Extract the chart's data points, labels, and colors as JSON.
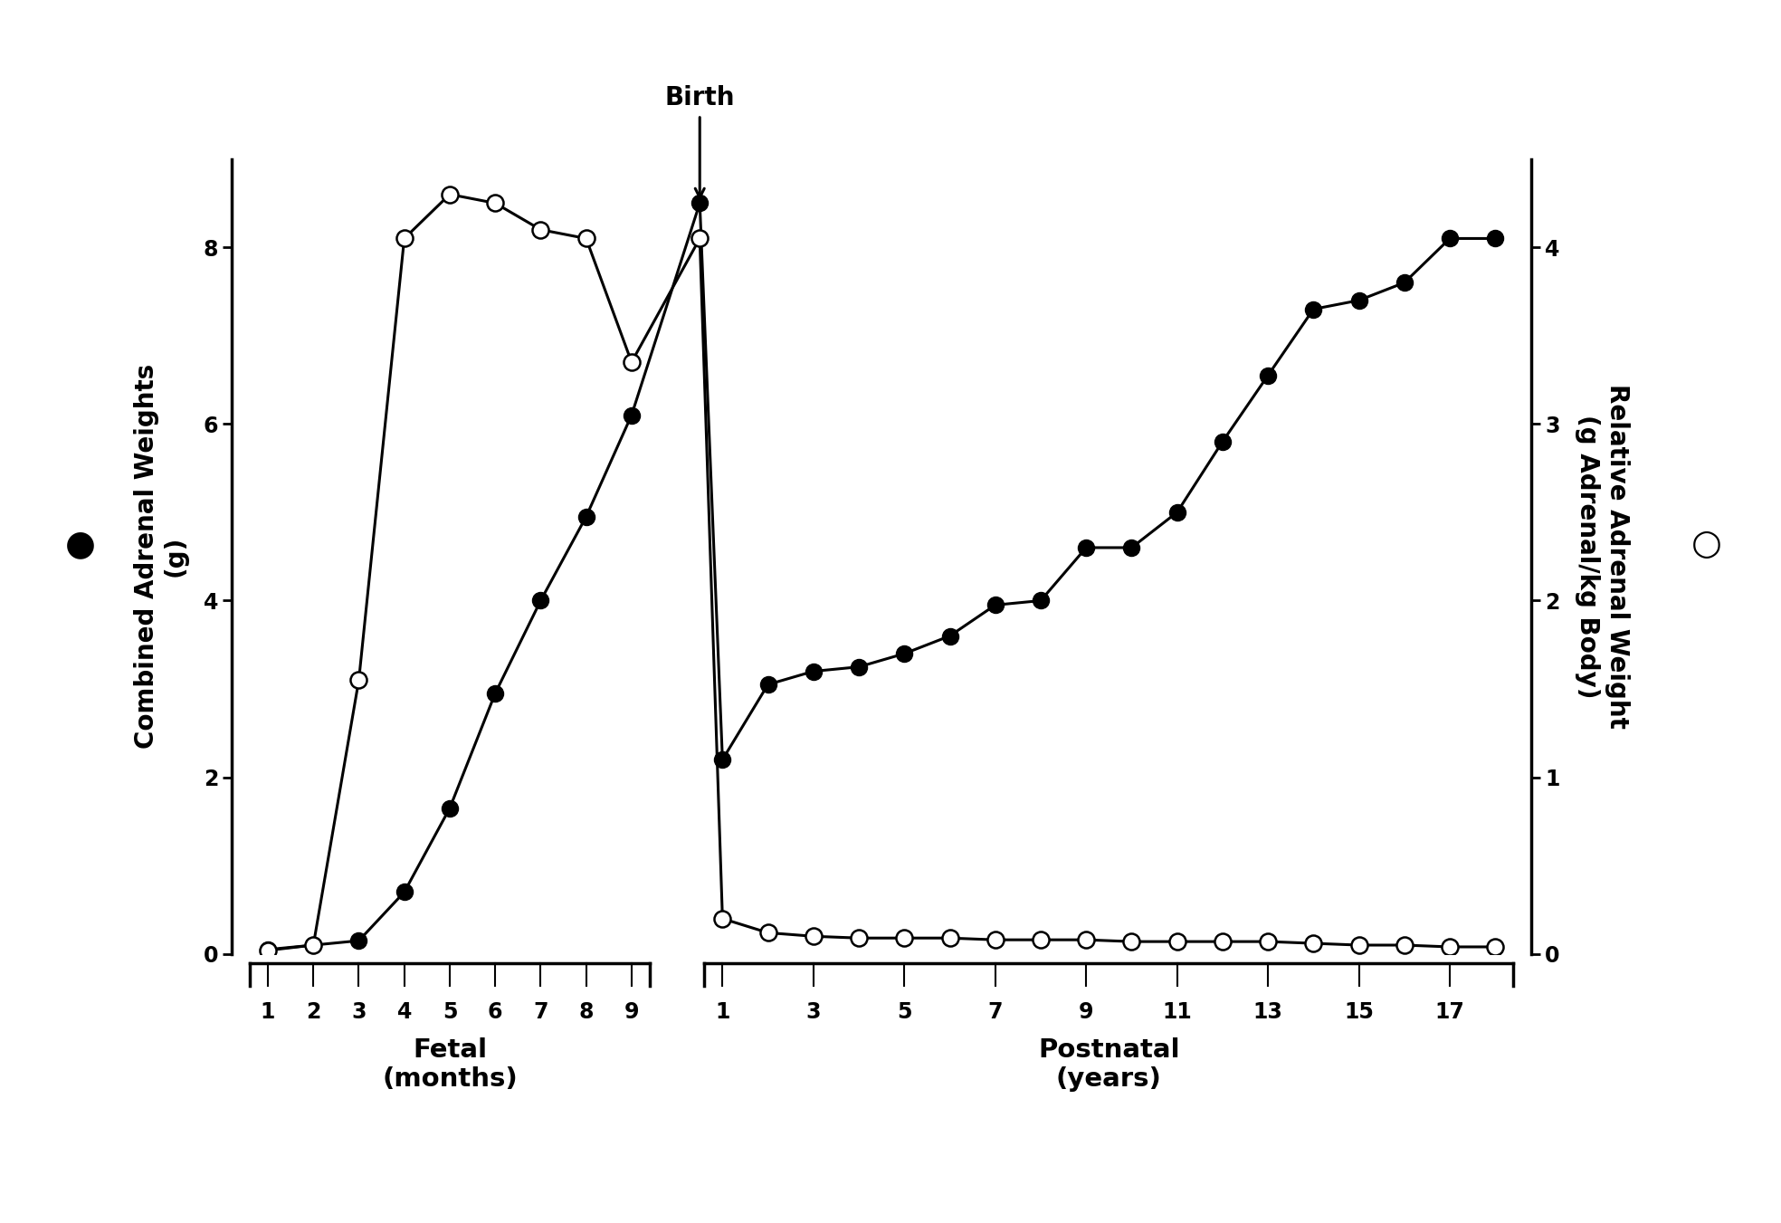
{
  "ylabel_left": "Combined Adrenal Weights\n(g)",
  "ylabel_right": "Relative Adrenal Weight\n(g Adrenal/kg Body)",
  "xlabel_fetal": "Fetal\n(months)",
  "xlabel_postnatal": "Postnatal\n(years)",
  "birth_label": "Birth",
  "fetal_tick_labels": [
    "1",
    "2",
    "3",
    "4",
    "5",
    "6",
    "7",
    "8",
    "9"
  ],
  "postnatal_tick_labels": [
    "1",
    "3",
    "5",
    "7",
    "9",
    "11",
    "13",
    "15",
    "17"
  ],
  "ylim_left": [
    0,
    9
  ],
  "ylim_right": [
    0,
    4.5
  ],
  "yticks_left": [
    0,
    2,
    4,
    6,
    8
  ],
  "yticks_right": [
    0,
    1,
    2,
    3,
    4
  ],
  "combined_fetal_ix": [
    0,
    1,
    2,
    3,
    4,
    5,
    6,
    7,
    8
  ],
  "combined_fetal_y": [
    0.05,
    0.1,
    0.15,
    0.7,
    1.65,
    2.95,
    4.0,
    4.95,
    6.1
  ],
  "combined_birth_y": [
    8.5
  ],
  "combined_postnatal_ix": [
    0,
    1,
    2,
    3,
    4,
    5,
    6,
    7,
    8,
    9,
    10,
    11,
    12,
    13,
    14,
    15,
    16,
    17
  ],
  "combined_postnatal_y": [
    2.2,
    3.05,
    3.2,
    3.25,
    3.4,
    3.6,
    3.95,
    4.0,
    4.6,
    4.6,
    5.0,
    5.8,
    6.55,
    7.3,
    7.4,
    7.6,
    8.1,
    8.1
  ],
  "relative_fetal_ix": [
    0,
    1,
    2,
    3,
    4,
    5,
    6,
    7,
    8
  ],
  "relative_fetal_y": [
    0.02,
    0.05,
    1.55,
    4.05,
    4.3,
    4.25,
    4.1,
    4.05,
    3.35
  ],
  "relative_birth_y": [
    4.05
  ],
  "relative_postnatal_ix": [
    0,
    1,
    2,
    3,
    4,
    5,
    6,
    7,
    8,
    9,
    10,
    11,
    12,
    13,
    14,
    15,
    16,
    17
  ],
  "relative_postnatal_y": [
    0.2,
    0.12,
    0.1,
    0.09,
    0.09,
    0.09,
    0.08,
    0.08,
    0.08,
    0.07,
    0.07,
    0.07,
    0.07,
    0.06,
    0.05,
    0.05,
    0.04,
    0.04
  ],
  "marker_size": 13,
  "linewidth": 2.2,
  "background_color": "#ffffff",
  "font_size_ylabel": 20,
  "font_size_ticks": 17,
  "font_size_xlabel": 21,
  "font_size_birth": 20,
  "font_size_legend": 28
}
